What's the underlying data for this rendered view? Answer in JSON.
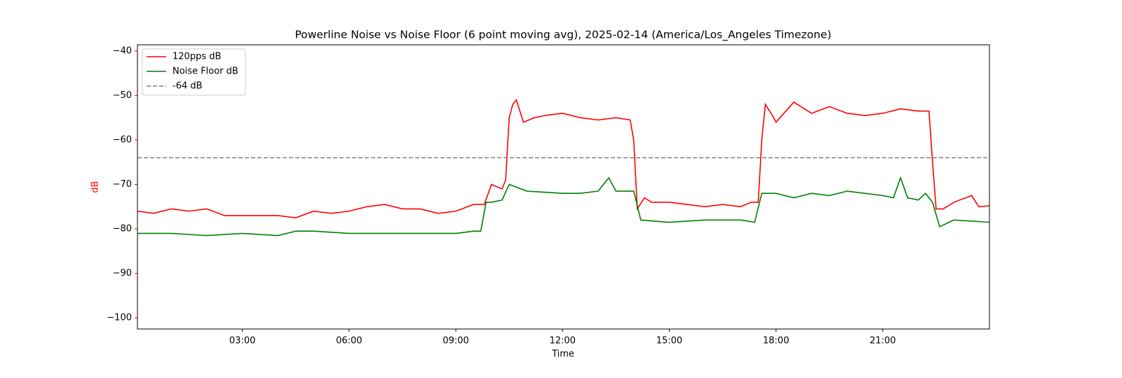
{
  "chart_data": {
    "type": "line",
    "title": "Powerline Noise vs Noise Floor (6 point moving avg), 2025-02-14 (America/Los_Angeles Timezone)",
    "xlabel": "Time",
    "ylabel": "dB",
    "ylabel_color": "#ff0000",
    "legend": "upper left",
    "xlim": [
      0.05,
      24.0
    ],
    "ylim": [
      -102.5,
      -38.6
    ],
    "xticks": [
      {
        "value": 3,
        "label": "03:00"
      },
      {
        "value": 6,
        "label": "06:00"
      },
      {
        "value": 9,
        "label": "09:00"
      },
      {
        "value": 12,
        "label": "12:00"
      },
      {
        "value": 15,
        "label": "15:00"
      },
      {
        "value": 18,
        "label": "18:00"
      },
      {
        "value": 21,
        "label": "21:00"
      }
    ],
    "yticks": [
      {
        "value": -40,
        "label": "−40"
      },
      {
        "value": -50,
        "label": "−50"
      },
      {
        "value": -60,
        "label": "−60"
      },
      {
        "value": -70,
        "label": "−70"
      },
      {
        "value": -80,
        "label": "−80"
      },
      {
        "value": -90,
        "label": "−90"
      },
      {
        "value": -100,
        "label": "−100"
      }
    ],
    "series": [
      {
        "name": "120pps dB",
        "color": "#ff0000",
        "x": [
          0.05,
          0.5,
          1,
          1.5,
          2,
          2.5,
          3,
          3.5,
          4,
          4.5,
          5,
          5.5,
          6,
          6.5,
          7,
          7.5,
          8,
          8.5,
          9,
          9.5,
          9.8,
          10,
          10.3,
          10.4,
          10.5,
          10.6,
          10.7,
          10.9,
          11.2,
          11.5,
          12,
          12.5,
          13,
          13.5,
          13.9,
          14.0,
          14.1,
          14.3,
          14.5,
          15,
          15.5,
          16,
          16.5,
          17,
          17.3,
          17.5,
          17.6,
          17.7,
          17.9,
          18,
          18.5,
          19,
          19.5,
          20,
          20.5,
          21,
          21.5,
          22,
          22.3,
          22.4,
          22.5,
          22.7,
          23,
          23.5,
          23.7,
          24.0
        ],
        "values": [
          -76,
          -76.5,
          -75.5,
          -76,
          -75.5,
          -77,
          -77,
          -77,
          -77,
          -77.5,
          -76,
          -76.5,
          -76,
          -75,
          -74.5,
          -75.5,
          -75.5,
          -76.5,
          -76,
          -74.5,
          -74.5,
          -70,
          -71,
          -69,
          -55,
          -52,
          -51,
          -56,
          -55,
          -54.5,
          -54,
          -55,
          -55.5,
          -55,
          -55.5,
          -60,
          -75.5,
          -73,
          -74,
          -74,
          -74.5,
          -75,
          -74.5,
          -75,
          -74,
          -74,
          -60,
          -52,
          -54.5,
          -56,
          -51.5,
          -54,
          -52.5,
          -54,
          -54.5,
          -54,
          -53,
          -53.5,
          -53.5,
          -65,
          -75.5,
          -75.5,
          -74,
          -72.5,
          -75,
          -74.8
        ]
      },
      {
        "name": "Noise Floor dB",
        "color": "#008000",
        "x": [
          0.05,
          1,
          2,
          3,
          4,
          4.5,
          5,
          6,
          7,
          8,
          9,
          9.5,
          9.7,
          9.85,
          10,
          10.3,
          10.5,
          11,
          12,
          12.5,
          13,
          13.3,
          13.5,
          14,
          14.2,
          15,
          16,
          17,
          17.4,
          17.6,
          18,
          18.5,
          19,
          19.5,
          20,
          21,
          21.3,
          21.5,
          21.7,
          22,
          22.2,
          22.4,
          22.6,
          23,
          24.0
        ],
        "values": [
          -81,
          -81,
          -81.5,
          -81,
          -81.5,
          -80.5,
          -80.5,
          -81,
          -81,
          -81,
          -81,
          -80.5,
          -80.5,
          -74,
          -74,
          -73.5,
          -70,
          -71.5,
          -72,
          -72,
          -71.5,
          -68.5,
          -71.5,
          -71.5,
          -78,
          -78.5,
          -78,
          -78,
          -78.5,
          -72,
          -72,
          -73,
          -72,
          -72.5,
          -71.5,
          -72.5,
          -73,
          -68.5,
          -73,
          -73.5,
          -72,
          -74,
          -79.5,
          -78,
          -78.5
        ]
      }
    ],
    "reference_line": {
      "name": "-64 dB",
      "value": -64,
      "color": "#808080"
    }
  }
}
